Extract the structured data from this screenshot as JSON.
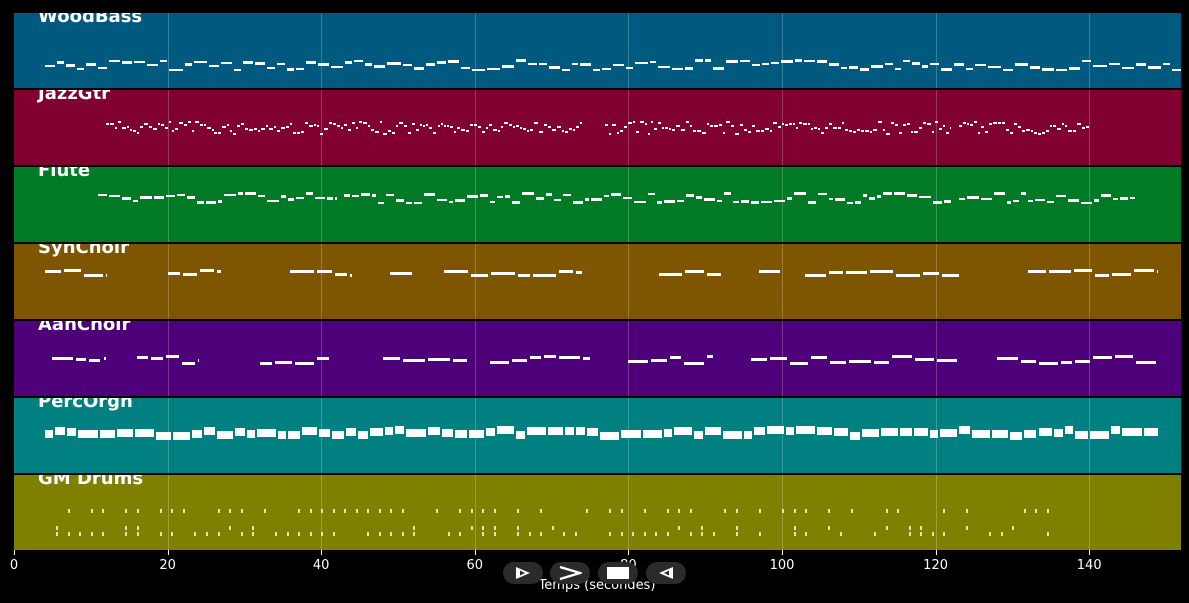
{
  "app": {
    "axis": {
      "title": "Temps (secondes)",
      "ticks": [
        "0",
        "20",
        "40",
        "60",
        "80",
        "100",
        "120",
        "140"
      ],
      "max_seconds": 152
    },
    "controls": [
      {
        "name": "play-icon",
        "label": "play"
      },
      {
        "name": "fast-forward-icon",
        "label": "forward"
      },
      {
        "name": "stop-icon",
        "label": "stop"
      },
      {
        "name": "rewind-icon",
        "label": "back"
      }
    ]
  },
  "tracks": [
    {
      "name": "WoodBass",
      "color": "#005a80"
    },
    {
      "name": "JazzGtr",
      "color": "#800030"
    },
    {
      "name": "Flute",
      "color": "#007a24"
    },
    {
      "name": "SynChoir",
      "color": "#7e5500"
    },
    {
      "name": "AahChoir",
      "color": "#4d007a"
    },
    {
      "name": "PercOrgn",
      "color": "#008080"
    },
    {
      "name": "GM Drums",
      "color": "#808000"
    }
  ]
}
